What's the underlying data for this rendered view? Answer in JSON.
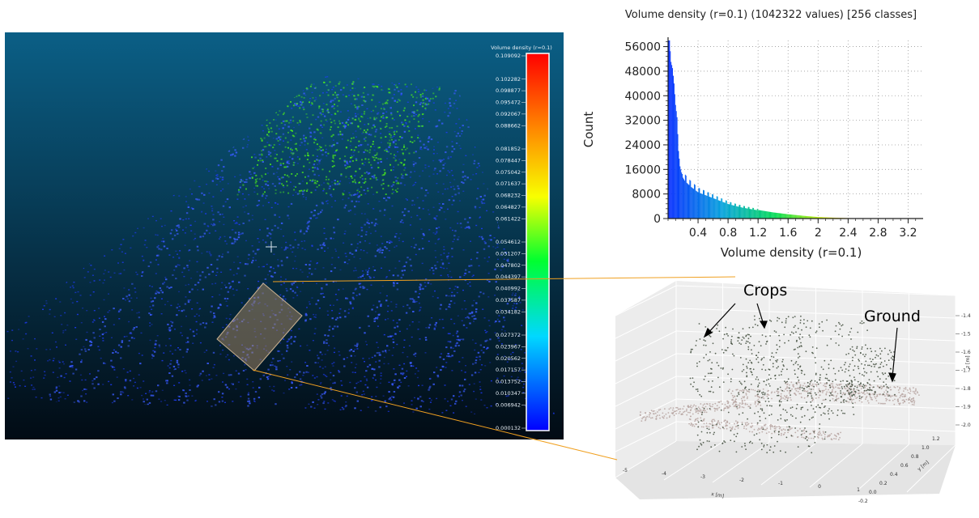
{
  "colors": {
    "bg_top": "#0b5f86",
    "bg_bottom": "#020b14",
    "point_blue": "#1f3cff",
    "point_green": "#4ef21a",
    "selection_fill": "#9c8262",
    "connector": "#f0a020",
    "crop_point": "#3f4b3b",
    "ground_point": "#b9a7a4"
  },
  "cloud": {
    "scale_title": "Volume density (r=0.1)",
    "scale_ticks": [
      "0.109092",
      "0.102282",
      "0.098877",
      "0.095472",
      "0.092067",
      "0.088662",
      "0.081852",
      "0.078447",
      "0.075042",
      "0.071637",
      "0.068232",
      "0.064827",
      "0.061422",
      "0.054612",
      "0.051207",
      "0.047802",
      "0.044397",
      "0.040992",
      "0.037587",
      "0.034182",
      "0.027372",
      "0.023967",
      "0.020562",
      "0.017157",
      "0.013752",
      "0.010347",
      "0.006942",
      "0.000132"
    ]
  },
  "chart_data": [
    {
      "type": "bar",
      "title": "Volume density (r=0.1) (1042322 values)  [256 classes]",
      "xlabel": "Volume density (r=0.1)",
      "ylabel": "Count",
      "xlim": [
        0,
        3.4
      ],
      "ylim": [
        0,
        58000
      ],
      "xticks": [
        "0.4",
        "0.8",
        "1.2",
        "1.6",
        "2",
        "2.4",
        "2.8",
        "3.2"
      ],
      "yticks": [
        "0",
        "8000",
        "16000",
        "24000",
        "32000",
        "40000",
        "48000",
        "56000"
      ],
      "grid": true,
      "bin_width": 0.02,
      "x": [
        0.02,
        0.04,
        0.06,
        0.08,
        0.1,
        0.12,
        0.14,
        0.16,
        0.18,
        0.2,
        0.22,
        0.24,
        0.26,
        0.28,
        0.3,
        0.35,
        0.4,
        0.5,
        0.6,
        0.7,
        0.8,
        0.9,
        1.0,
        1.2,
        1.4,
        1.6,
        1.8,
        2.0,
        2.2,
        2.4,
        2.6,
        2.8,
        3.0,
        3.2
      ],
      "values": [
        58000,
        51000,
        49000,
        44000,
        37000,
        33000,
        22000,
        17000,
        15000,
        14000,
        13000,
        12500,
        12000,
        11500,
        11000,
        10000,
        9000,
        8000,
        7000,
        6000,
        5000,
        4300,
        3700,
        2800,
        2000,
        1400,
        900,
        500,
        300,
        150,
        100,
        60,
        40,
        20
      ]
    },
    {
      "type": "scatter",
      "xlabel": "x [m]",
      "ylabel": "y [m]",
      "zlabel": "z [m]",
      "x_ticks": [
        "-5",
        "-4",
        "-3",
        "-2",
        "-1",
        "0",
        "1"
      ],
      "y_ticks": [
        "-0.2",
        "0.0",
        "0.2",
        "0.4",
        "0.6",
        "0.8",
        "1.0",
        "1.2"
      ],
      "z_ticks": [
        "-1.4",
        "-1.5",
        "-1.6",
        "-1.7",
        "-1.8",
        "-1.9",
        "-2.0"
      ],
      "annotations": [
        "Crops",
        "Ground"
      ],
      "series": [
        {
          "name": "Crops",
          "color": "#3f4b3b"
        },
        {
          "name": "Ground",
          "color": "#b9a7a4"
        }
      ]
    }
  ]
}
